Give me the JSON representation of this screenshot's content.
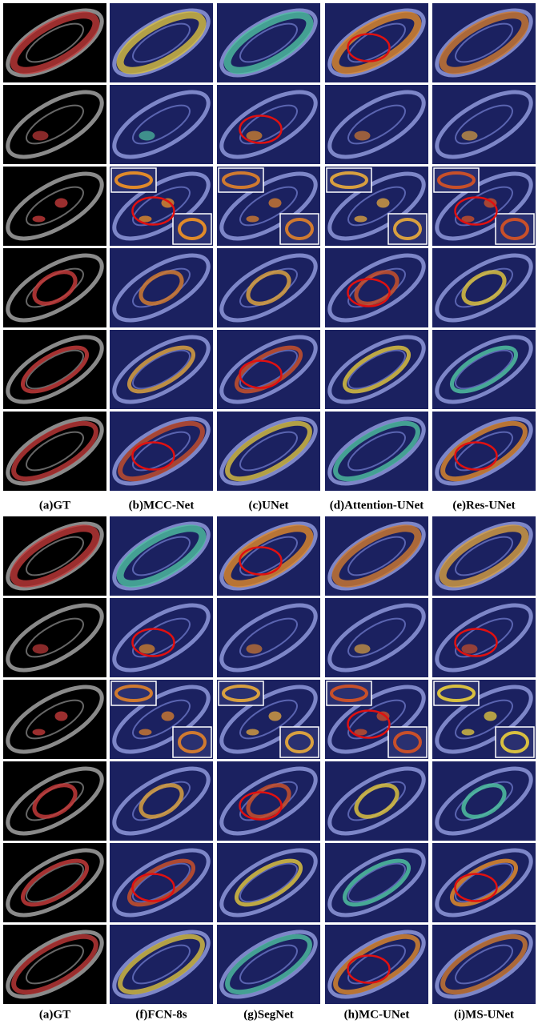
{
  "figure": {
    "captions_top": [
      "(a)GT",
      "(b)MCC-Net",
      "(c)UNet",
      "(d)Attention-UNet",
      "(e)Res-UNet"
    ],
    "captions_bottom": [
      "(a)GT",
      "(f)FCN-8s",
      "(g)SegNet",
      "(h)MC-UNet",
      "(i)MS-UNet"
    ]
  }
}
